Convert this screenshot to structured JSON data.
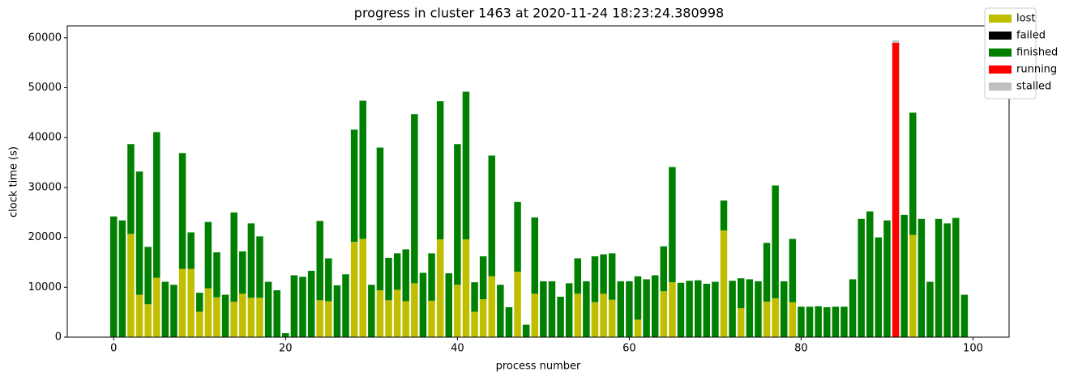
{
  "chart_data": {
    "type": "bar",
    "stacked": true,
    "title": "progress in cluster 1463 at 2020-11-24 18:23:24.380998",
    "xlabel": "process number",
    "ylabel": "clock time (s)",
    "x": [
      0,
      1,
      2,
      3,
      4,
      5,
      6,
      7,
      8,
      9,
      10,
      11,
      12,
      13,
      14,
      15,
      16,
      17,
      18,
      19,
      20,
      21,
      22,
      23,
      24,
      25,
      26,
      27,
      28,
      29,
      30,
      31,
      32,
      33,
      34,
      35,
      36,
      37,
      38,
      39,
      40,
      41,
      42,
      43,
      44,
      45,
      46,
      47,
      48,
      49,
      50,
      51,
      52,
      53,
      54,
      55,
      56,
      57,
      58,
      59,
      60,
      61,
      62,
      63,
      64,
      65,
      66,
      67,
      68,
      69,
      70,
      71,
      72,
      73,
      74,
      75,
      76,
      77,
      78,
      79,
      80,
      81,
      82,
      83,
      84,
      85,
      86,
      87,
      88,
      89,
      90,
      91,
      92,
      93,
      94,
      95,
      96,
      97,
      98,
      99
    ],
    "series": [
      {
        "name": "lost",
        "color": "#bfbf00",
        "values": [
          0,
          0,
          20700,
          8500,
          6600,
          11900,
          0,
          0,
          13700,
          13700,
          5100,
          9800,
          8000,
          0,
          7100,
          8700,
          7900,
          7900,
          0,
          0,
          0,
          0,
          0,
          0,
          7400,
          7200,
          0,
          0,
          19100,
          19700,
          0,
          9400,
          7400,
          9500,
          7200,
          10800,
          0,
          7300,
          19600,
          0,
          10500,
          19600,
          5100,
          7600,
          12200,
          0,
          0,
          13100,
          0,
          8700,
          0,
          0,
          0,
          0,
          8700,
          0,
          7000,
          8700,
          7500,
          0,
          0,
          3500,
          0,
          0,
          9200,
          11000,
          0,
          0,
          0,
          0,
          0,
          21400,
          0,
          5800,
          0,
          0,
          7100,
          7800,
          0,
          7000,
          0,
          0,
          0,
          0,
          0,
          0,
          0,
          0,
          0,
          0,
          0,
          0,
          0,
          20500,
          0,
          0,
          0,
          0,
          0,
          0
        ]
      },
      {
        "name": "failed",
        "color": "#000000",
        "values": [
          0,
          0,
          0,
          0,
          0,
          0,
          0,
          0,
          0,
          0,
          0,
          0,
          0,
          0,
          0,
          0,
          0,
          0,
          0,
          0,
          0,
          0,
          0,
          0,
          0,
          0,
          0,
          0,
          0,
          0,
          0,
          0,
          0,
          0,
          0,
          0,
          0,
          0,
          0,
          0,
          0,
          0,
          0,
          0,
          0,
          0,
          0,
          0,
          0,
          0,
          0,
          0,
          0,
          0,
          0,
          0,
          0,
          0,
          0,
          0,
          0,
          0,
          0,
          0,
          0,
          0,
          0,
          0,
          0,
          0,
          0,
          0,
          0,
          0,
          0,
          0,
          0,
          0,
          0,
          0,
          0,
          0,
          0,
          0,
          0,
          0,
          0,
          0,
          0,
          0,
          0,
          0,
          0,
          0,
          0,
          0,
          0,
          0,
          0,
          0
        ]
      },
      {
        "name": "finished",
        "color": "#008000",
        "values": [
          24200,
          23400,
          18000,
          24700,
          11500,
          29200,
          11100,
          10500,
          23200,
          7300,
          3800,
          13300,
          9000,
          8500,
          17900,
          8500,
          14900,
          12300,
          11100,
          9400,
          800,
          12400,
          12100,
          13300,
          15900,
          8600,
          10400,
          12600,
          22500,
          27700,
          10500,
          28600,
          8500,
          7300,
          10400,
          33900,
          12900,
          9500,
          27700,
          12800,
          28200,
          29600,
          5900,
          8600,
          24200,
          10500,
          6000,
          14000,
          2500,
          15300,
          11200,
          11200,
          8100,
          10800,
          7100,
          11200,
          9200,
          7900,
          9300,
          11200,
          11200,
          8700,
          11600,
          12400,
          9000,
          23100,
          10900,
          11300,
          11400,
          10700,
          11100,
          6000,
          11300,
          6000,
          11600,
          11200,
          11800,
          22600,
          11200,
          12700,
          6100,
          6100,
          6200,
          6000,
          6100,
          6100,
          11600,
          23700,
          25200,
          20000,
          23400,
          0,
          24500,
          24500,
          23700,
          11100,
          23700,
          22800,
          23900,
          8500
        ]
      },
      {
        "name": "running",
        "color": "#ff0000",
        "values": [
          0,
          0,
          0,
          0,
          0,
          0,
          0,
          0,
          0,
          0,
          0,
          0,
          0,
          0,
          0,
          0,
          0,
          0,
          0,
          0,
          0,
          0,
          0,
          0,
          0,
          0,
          0,
          0,
          0,
          0,
          0,
          0,
          0,
          0,
          0,
          0,
          0,
          0,
          0,
          0,
          0,
          0,
          0,
          0,
          0,
          0,
          0,
          0,
          0,
          0,
          0,
          0,
          0,
          0,
          0,
          0,
          0,
          0,
          0,
          0,
          0,
          0,
          0,
          0,
          0,
          0,
          0,
          0,
          0,
          0,
          0,
          0,
          0,
          0,
          0,
          0,
          0,
          0,
          0,
          0,
          0,
          0,
          0,
          0,
          0,
          0,
          0,
          0,
          0,
          0,
          0,
          59000,
          0,
          0,
          0,
          0,
          0,
          0,
          0,
          0
        ]
      },
      {
        "name": "stalled",
        "color": "#c0c0c0",
        "values": [
          0,
          0,
          0,
          0,
          0,
          0,
          0,
          0,
          0,
          0,
          0,
          0,
          0,
          0,
          0,
          0,
          0,
          0,
          0,
          0,
          0,
          0,
          0,
          0,
          0,
          0,
          0,
          0,
          0,
          0,
          0,
          0,
          0,
          0,
          0,
          0,
          0,
          0,
          0,
          0,
          0,
          0,
          0,
          0,
          0,
          0,
          0,
          0,
          0,
          0,
          0,
          0,
          0,
          0,
          0,
          0,
          0,
          0,
          0,
          0,
          0,
          0,
          0,
          0,
          0,
          0,
          0,
          0,
          0,
          0,
          0,
          0,
          0,
          0,
          0,
          0,
          0,
          0,
          0,
          0,
          0,
          0,
          0,
          0,
          0,
          0,
          0,
          0,
          0,
          0,
          0,
          500,
          0,
          0,
          0,
          0,
          0,
          0,
          0,
          0
        ]
      }
    ],
    "xlim": [
      -5.4,
      104.2
    ],
    "ylim": [
      0,
      62400
    ],
    "xticks": [
      0,
      20,
      40,
      60,
      80,
      100
    ],
    "yticks": [
      0,
      10000,
      20000,
      30000,
      40000,
      50000,
      60000
    ],
    "legend": "upper right outside"
  }
}
